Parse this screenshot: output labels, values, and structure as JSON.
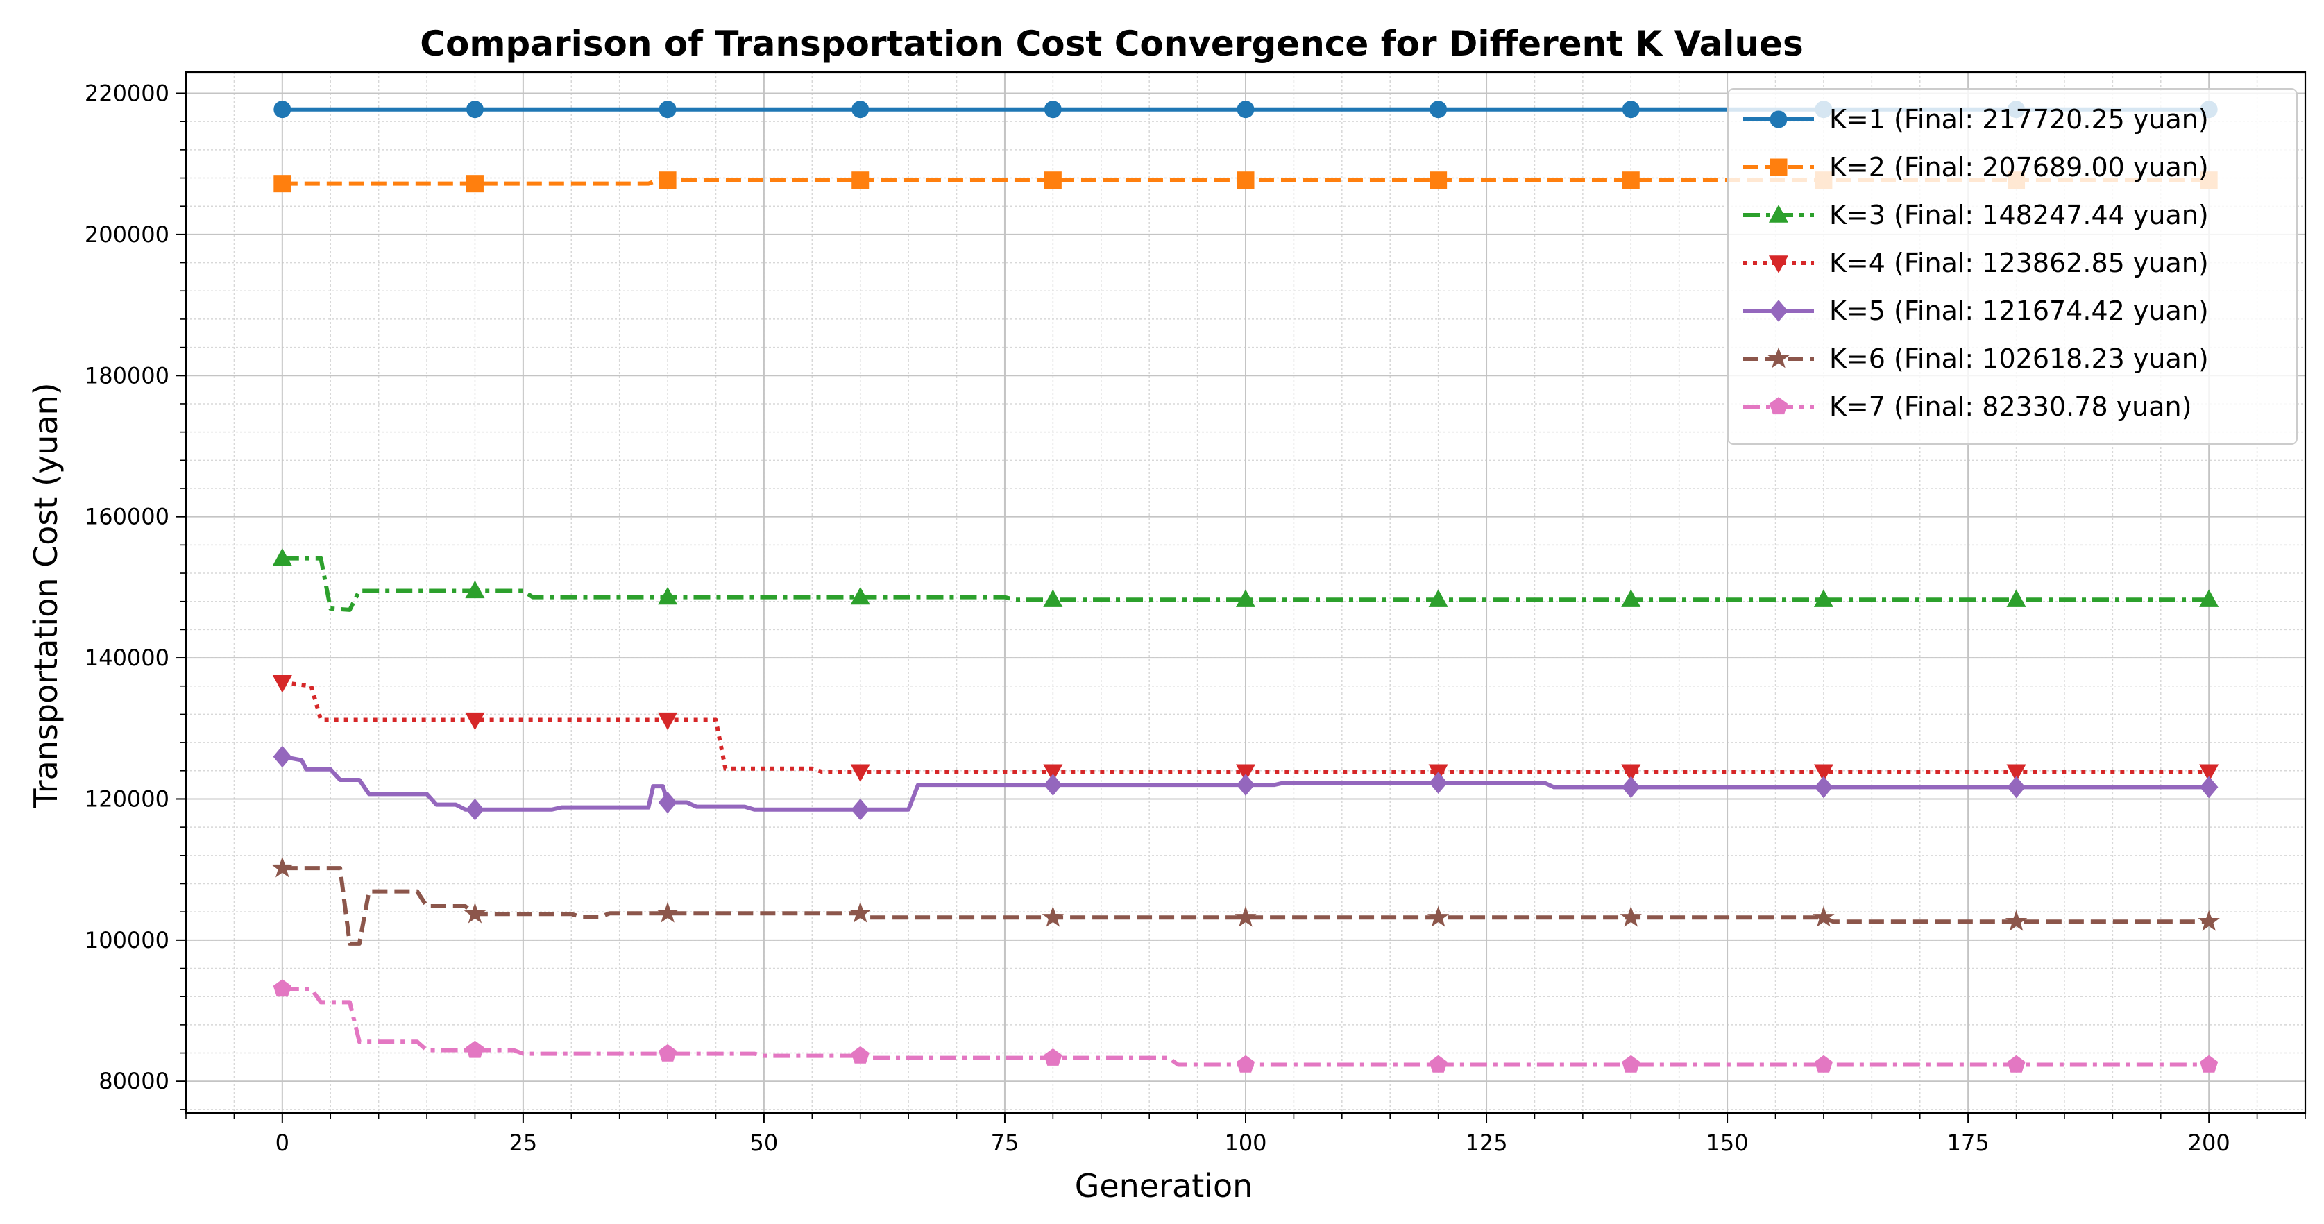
{
  "chart_data": {
    "type": "line",
    "title": "Comparison of Transportation Cost Convergence for Different K Values",
    "xlabel": "Generation",
    "ylabel": "Transportation Cost (yuan)",
    "xlim": [
      -10,
      210
    ],
    "ylim": [
      75500,
      223000
    ],
    "xticks": [
      0,
      25,
      50,
      75,
      100,
      125,
      150,
      175,
      200
    ],
    "yticks": [
      80000,
      100000,
      120000,
      140000,
      160000,
      180000,
      200000,
      220000
    ],
    "grid": true,
    "legend_position": "upper right",
    "marker_every": 20,
    "series": [
      {
        "name": "K=1 (Final: 217720.25 yuan)",
        "color": "#1f77b4",
        "dash": "solid",
        "marker": "circle",
        "points": [
          [
            0,
            217720.25
          ],
          [
            200,
            217720.25
          ]
        ]
      },
      {
        "name": "K=2 (Final: 207689.00 yuan)",
        "color": "#ff7f0e",
        "dash": "dashed",
        "marker": "square",
        "points": [
          [
            0,
            207200
          ],
          [
            38,
            207200
          ],
          [
            39,
            207689
          ],
          [
            200,
            207689
          ]
        ]
      },
      {
        "name": "K=3 (Final: 148247.44 yuan)",
        "color": "#2ca02c",
        "dash": "dashdot",
        "marker": "triangle-up",
        "points": [
          [
            0,
            154100
          ],
          [
            4,
            154100
          ],
          [
            5,
            147000
          ],
          [
            7,
            146800
          ],
          [
            8,
            149500
          ],
          [
            25,
            149500
          ],
          [
            26,
            148600
          ],
          [
            75,
            148600
          ],
          [
            76,
            148247.44
          ],
          [
            200,
            148247.44
          ]
        ]
      },
      {
        "name": "K=4 (Final: 123862.85 yuan)",
        "color": "#d62728",
        "dash": "dotted",
        "marker": "triangle-down",
        "points": [
          [
            0,
            136500
          ],
          [
            3,
            136000
          ],
          [
            4,
            131200
          ],
          [
            45,
            131200
          ],
          [
            46,
            124300
          ],
          [
            55,
            124300
          ],
          [
            56,
            123862.85
          ],
          [
            200,
            123862.85
          ]
        ]
      },
      {
        "name": "K=5 (Final: 121674.42 yuan)",
        "color": "#9467bd",
        "dash": "solid",
        "marker": "diamond",
        "points": [
          [
            0,
            126000
          ],
          [
            2,
            125500
          ],
          [
            2.5,
            124200
          ],
          [
            5,
            124200
          ],
          [
            6,
            122700
          ],
          [
            8,
            122700
          ],
          [
            9,
            120700
          ],
          [
            15,
            120700
          ],
          [
            16,
            119200
          ],
          [
            18,
            119200
          ],
          [
            19,
            118500
          ],
          [
            28,
            118500
          ],
          [
            29,
            118800
          ],
          [
            38,
            118800
          ],
          [
            38.5,
            121800
          ],
          [
            39.5,
            121800
          ],
          [
            40,
            119500
          ],
          [
            42,
            119500
          ],
          [
            43,
            118900
          ],
          [
            48,
            118900
          ],
          [
            49,
            118500
          ],
          [
            65,
            118500
          ],
          [
            66,
            122000
          ],
          [
            103,
            122000
          ],
          [
            104,
            122300
          ],
          [
            131,
            122300
          ],
          [
            132,
            121674.42
          ],
          [
            200,
            121674.42
          ]
        ]
      },
      {
        "name": "K=6 (Final: 102618.23 yuan)",
        "color": "#8c564b",
        "dash": "dashed",
        "marker": "star",
        "points": [
          [
            0,
            110200
          ],
          [
            6,
            110200
          ],
          [
            7,
            99500
          ],
          [
            8,
            99500
          ],
          [
            9,
            106900
          ],
          [
            14,
            106900
          ],
          [
            15,
            104800
          ],
          [
            19,
            104800
          ],
          [
            20,
            103700
          ],
          [
            30,
            103700
          ],
          [
            31,
            103300
          ],
          [
            33,
            103300
          ],
          [
            34,
            103800
          ],
          [
            60,
            103800
          ],
          [
            61,
            103200
          ],
          [
            160,
            103200
          ],
          [
            161,
            102618.23
          ],
          [
            200,
            102618.23
          ]
        ]
      },
      {
        "name": "K=7 (Final: 82330.78 yuan)",
        "color": "#e377c2",
        "dash": "dashdot",
        "marker": "pentagon",
        "points": [
          [
            0,
            93100
          ],
          [
            3,
            93100
          ],
          [
            4,
            91200
          ],
          [
            7,
            91200
          ],
          [
            8,
            85600
          ],
          [
            14,
            85600
          ],
          [
            15,
            84400
          ],
          [
            24,
            84400
          ],
          [
            25,
            83900
          ],
          [
            49,
            83900
          ],
          [
            50,
            83600
          ],
          [
            60,
            83600
          ],
          [
            61,
            83300
          ],
          [
            92,
            83300
          ],
          [
            93,
            82330.78
          ],
          [
            200,
            82330.78
          ]
        ]
      }
    ]
  }
}
